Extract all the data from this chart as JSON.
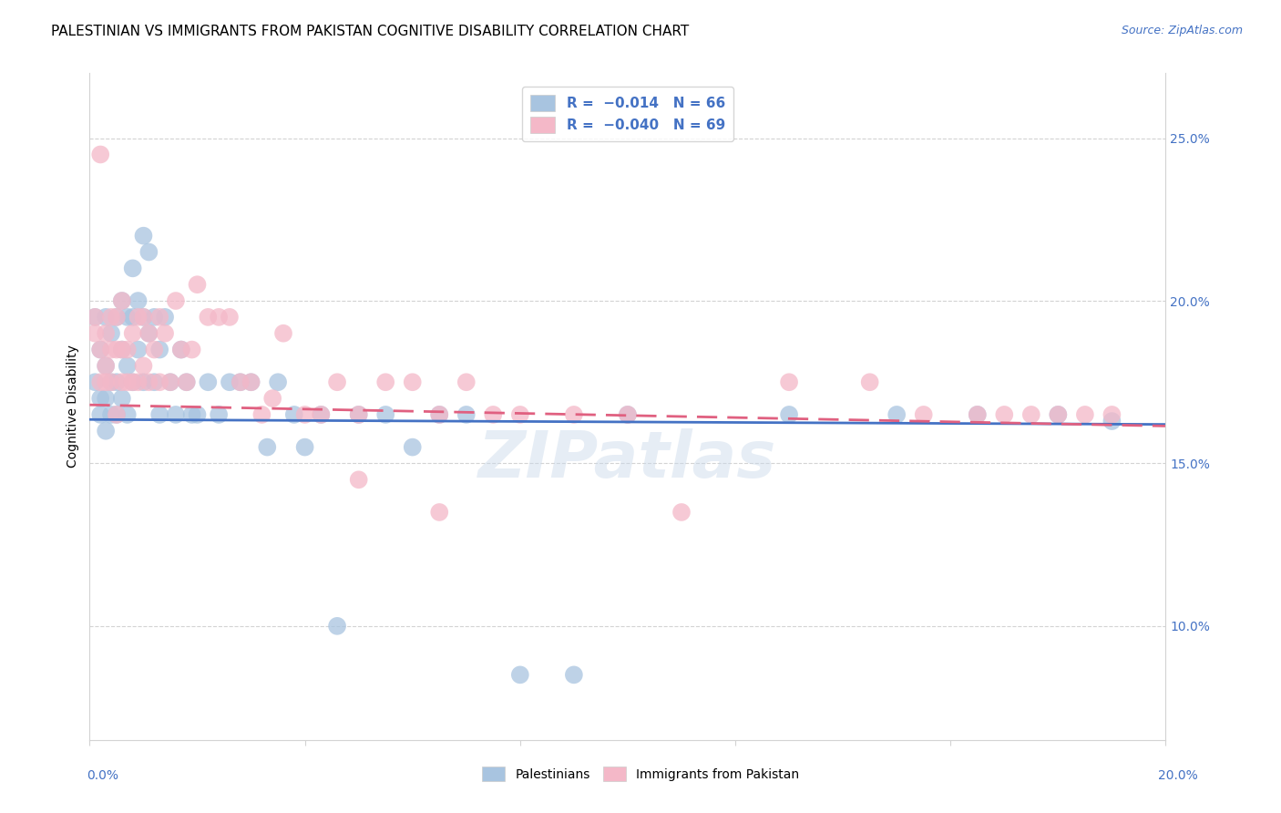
{
  "title": "PALESTINIAN VS IMMIGRANTS FROM PAKISTAN COGNITIVE DISABILITY CORRELATION CHART",
  "source": "Source: ZipAtlas.com",
  "ylabel": "Cognitive Disability",
  "xlim": [
    0.0,
    0.2
  ],
  "ylim": [
    0.065,
    0.27
  ],
  "right_yticks": [
    0.1,
    0.15,
    0.2,
    0.25
  ],
  "right_ytick_labels": [
    "10.0%",
    "15.0%",
    "20.0%",
    "25.0%"
  ],
  "blue_color": "#a8c4e0",
  "pink_color": "#f4b8c8",
  "blue_line_color": "#4472c4",
  "pink_line_color": "#e06080",
  "watermark": "ZIPatlas",
  "title_fontsize": 11,
  "label_fontsize": 10,
  "tick_fontsize": 10,
  "palestinians": {
    "x": [
      0.001,
      0.001,
      0.002,
      0.002,
      0.002,
      0.003,
      0.003,
      0.003,
      0.003,
      0.004,
      0.004,
      0.004,
      0.005,
      0.005,
      0.005,
      0.006,
      0.006,
      0.006,
      0.007,
      0.007,
      0.007,
      0.008,
      0.008,
      0.008,
      0.009,
      0.009,
      0.01,
      0.01,
      0.01,
      0.011,
      0.011,
      0.012,
      0.012,
      0.013,
      0.013,
      0.014,
      0.015,
      0.016,
      0.017,
      0.018,
      0.019,
      0.02,
      0.022,
      0.024,
      0.026,
      0.028,
      0.03,
      0.033,
      0.035,
      0.038,
      0.04,
      0.043,
      0.046,
      0.05,
      0.055,
      0.06,
      0.065,
      0.07,
      0.08,
      0.09,
      0.1,
      0.13,
      0.15,
      0.165,
      0.18,
      0.19
    ],
    "y": [
      0.195,
      0.175,
      0.17,
      0.185,
      0.165,
      0.195,
      0.18,
      0.17,
      0.16,
      0.19,
      0.175,
      0.165,
      0.195,
      0.175,
      0.165,
      0.2,
      0.185,
      0.17,
      0.195,
      0.18,
      0.165,
      0.21,
      0.195,
      0.175,
      0.2,
      0.185,
      0.22,
      0.195,
      0.175,
      0.215,
      0.19,
      0.195,
      0.175,
      0.185,
      0.165,
      0.195,
      0.175,
      0.165,
      0.185,
      0.175,
      0.165,
      0.165,
      0.175,
      0.165,
      0.175,
      0.175,
      0.175,
      0.155,
      0.175,
      0.165,
      0.155,
      0.165,
      0.1,
      0.165,
      0.165,
      0.155,
      0.165,
      0.165,
      0.085,
      0.085,
      0.165,
      0.165,
      0.165,
      0.165,
      0.165,
      0.163
    ]
  },
  "pakistan": {
    "x": [
      0.001,
      0.001,
      0.002,
      0.002,
      0.002,
      0.003,
      0.003,
      0.003,
      0.004,
      0.004,
      0.004,
      0.005,
      0.005,
      0.005,
      0.006,
      0.006,
      0.006,
      0.007,
      0.007,
      0.008,
      0.008,
      0.009,
      0.009,
      0.01,
      0.01,
      0.011,
      0.011,
      0.012,
      0.013,
      0.013,
      0.014,
      0.015,
      0.016,
      0.017,
      0.018,
      0.019,
      0.02,
      0.022,
      0.024,
      0.026,
      0.028,
      0.03,
      0.032,
      0.034,
      0.036,
      0.04,
      0.043,
      0.046,
      0.05,
      0.055,
      0.06,
      0.065,
      0.07,
      0.075,
      0.08,
      0.09,
      0.1,
      0.11,
      0.13,
      0.145,
      0.155,
      0.165,
      0.17,
      0.175,
      0.18,
      0.185,
      0.19,
      0.05,
      0.065
    ],
    "y": [
      0.195,
      0.19,
      0.245,
      0.185,
      0.175,
      0.19,
      0.18,
      0.175,
      0.195,
      0.185,
      0.175,
      0.195,
      0.185,
      0.165,
      0.2,
      0.185,
      0.175,
      0.185,
      0.175,
      0.19,
      0.175,
      0.195,
      0.175,
      0.195,
      0.18,
      0.19,
      0.175,
      0.185,
      0.195,
      0.175,
      0.19,
      0.175,
      0.2,
      0.185,
      0.175,
      0.185,
      0.205,
      0.195,
      0.195,
      0.195,
      0.175,
      0.175,
      0.165,
      0.17,
      0.19,
      0.165,
      0.165,
      0.175,
      0.165,
      0.175,
      0.175,
      0.165,
      0.175,
      0.165,
      0.165,
      0.165,
      0.165,
      0.135,
      0.175,
      0.175,
      0.165,
      0.165,
      0.165,
      0.165,
      0.165,
      0.165,
      0.165,
      0.145,
      0.135
    ]
  }
}
